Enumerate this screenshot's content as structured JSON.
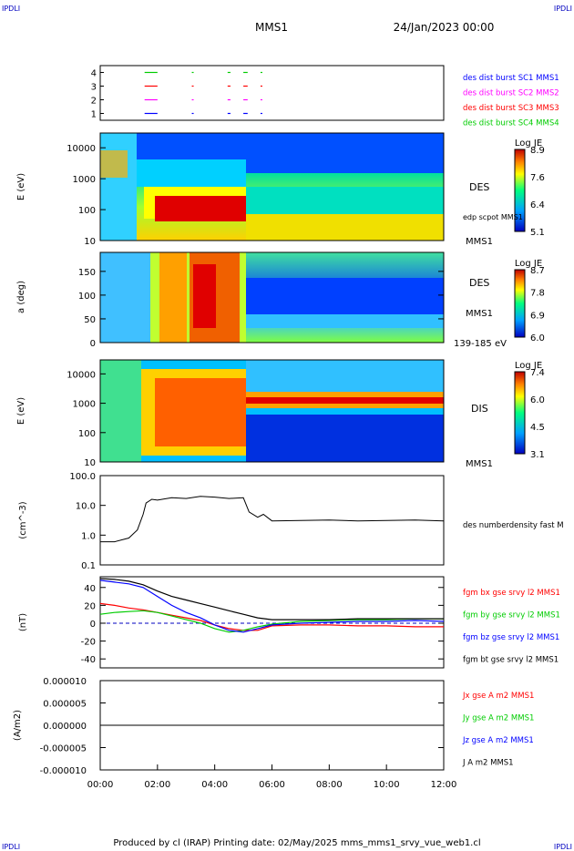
{
  "header": {
    "left_tag": "IPDLI",
    "right_tag": "IPDLI",
    "spacecraft": "MMS1",
    "date": "24/Jan/2023 00:00"
  },
  "footer": {
    "text": "Produced by cl (IRAP)   Printing date: 02/May/2025   mms_mms1_srvy_vue_web1.cl",
    "left_tag": "IPDLI",
    "right_tag": "IPDLI"
  },
  "colors": {
    "red": "#ff0000",
    "green": "#00cc00",
    "blue": "#0000ff",
    "magenta": "#ff00ff",
    "black": "#000000"
  },
  "chart_data": [
    {
      "type": "scatter",
      "panel": "burst-availability",
      "yticks": [
        "1",
        "2",
        "3",
        "4"
      ],
      "ylim": [
        0.5,
        4.5
      ],
      "legend": [
        {
          "name": "des dist burst SC1 MMS1",
          "color": "#0000ff"
        },
        {
          "name": "des dist burst SC2 MMS2",
          "color": "#ff00ff"
        },
        {
          "name": "des dist burst SC3 MMS3",
          "color": "#ff0000"
        },
        {
          "name": "des dist burst SC4 MMS4",
          "color": "#00cc00"
        }
      ],
      "segments": [
        {
          "level": 4,
          "start": 1.55,
          "end": 2.0,
          "color": "#00cc00"
        },
        {
          "level": 3,
          "start": 1.55,
          "end": 2.0,
          "color": "#ff0000"
        },
        {
          "level": 2,
          "start": 1.55,
          "end": 2.0,
          "color": "#ff00ff"
        },
        {
          "level": 1,
          "start": 1.55,
          "end": 2.0,
          "color": "#0000ff"
        },
        {
          "level": 4,
          "start": 3.2,
          "end": 3.25,
          "color": "#00cc00"
        },
        {
          "level": 3,
          "start": 3.2,
          "end": 3.25,
          "color": "#ff0000"
        },
        {
          "level": 2,
          "start": 3.2,
          "end": 3.25,
          "color": "#ff00ff"
        },
        {
          "level": 1,
          "start": 3.2,
          "end": 3.25,
          "color": "#0000ff"
        },
        {
          "level": 4,
          "start": 4.45,
          "end": 4.55,
          "color": "#00cc00"
        },
        {
          "level": 3,
          "start": 4.45,
          "end": 4.55,
          "color": "#ff0000"
        },
        {
          "level": 2,
          "start": 4.45,
          "end": 4.55,
          "color": "#ff00ff"
        },
        {
          "level": 1,
          "start": 4.45,
          "end": 4.55,
          "color": "#0000ff"
        },
        {
          "level": 4,
          "start": 5.0,
          "end": 5.15,
          "color": "#00cc00"
        },
        {
          "level": 3,
          "start": 5.0,
          "end": 5.15,
          "color": "#ff0000"
        },
        {
          "level": 2,
          "start": 5.0,
          "end": 5.15,
          "color": "#ff00ff"
        },
        {
          "level": 1,
          "start": 5.0,
          "end": 5.15,
          "color": "#0000ff"
        },
        {
          "level": 4,
          "start": 5.6,
          "end": 5.65,
          "color": "#00cc00"
        },
        {
          "level": 3,
          "start": 5.6,
          "end": 5.65,
          "color": "#ff0000"
        },
        {
          "level": 2,
          "start": 5.6,
          "end": 5.65,
          "color": "#ff00ff"
        },
        {
          "level": 1,
          "start": 5.6,
          "end": 5.65,
          "color": "#0000ff"
        }
      ]
    },
    {
      "type": "heatmap",
      "panel": "des-energy",
      "ylabel": "E (eV)",
      "yscale": "log",
      "ylim": [
        10,
        30000
      ],
      "yticks": [
        "10",
        "100",
        "1000",
        "10000"
      ],
      "right_labels": [
        "DES",
        "edp scpot MMS1",
        "MMS1"
      ],
      "colorbar": {
        "title": "Log JE",
        "ticks": [
          "8.9",
          "7.6",
          "6.4",
          "5.1"
        ],
        "min": 5.1,
        "max": 8.9
      },
      "description_bands": [
        {
          "t0": 0.0,
          "t1": 1.3,
          "e_peak": 900,
          "level": 7.0
        },
        {
          "t0": 1.5,
          "t1": 5.1,
          "e_peak": 150,
          "level": 8.5
        },
        {
          "t0": 5.1,
          "t1": 12.0,
          "e_peak": 30,
          "level": 7.2
        }
      ]
    },
    {
      "type": "heatmap",
      "panel": "des-pitch-angle",
      "ylabel": "a (deg)",
      "ylim": [
        0,
        180
      ],
      "yticks": [
        "0",
        "50",
        "100",
        "150"
      ],
      "right_labels": [
        "DES",
        "MMS1",
        "139-185 eV"
      ],
      "colorbar": {
        "title": "Log JE",
        "ticks": [
          "8.7",
          "7.8",
          "6.9",
          "6.0"
        ],
        "min": 6.0,
        "max": 8.7
      }
    },
    {
      "type": "heatmap",
      "panel": "dis-energy",
      "ylabel": "E (eV)",
      "yscale": "log",
      "ylim": [
        10,
        30000
      ],
      "yticks": [
        "10",
        "100",
        "1000",
        "10000"
      ],
      "right_labels": [
        "DIS",
        "MMS1"
      ],
      "colorbar": {
        "title": "Log JE",
        "ticks": [
          "7.4",
          "6.0",
          "4.5",
          "3.1"
        ],
        "min": 3.1,
        "max": 7.4
      }
    },
    {
      "type": "line",
      "panel": "density",
      "ylabel": "(cm^-3)",
      "yscale": "log",
      "ylim": [
        0.1,
        100
      ],
      "yticks": [
        "0.1",
        "1.0",
        "10.0",
        "100.0"
      ],
      "legend": [
        {
          "name": "des numberdensity fast M",
          "color": "#000000"
        }
      ],
      "x": [
        0.0,
        0.5,
        1.0,
        1.3,
        1.5,
        1.6,
        1.8,
        2.0,
        2.5,
        3.0,
        3.5,
        4.0,
        4.5,
        5.0,
        5.2,
        5.5,
        5.7,
        6.0,
        7.0,
        8.0,
        9.0,
        10.0,
        11.0,
        12.0
      ],
      "values": [
        0.6,
        0.6,
        0.8,
        1.5,
        5,
        12,
        16,
        15,
        18,
        17,
        20,
        19,
        17,
        18,
        6,
        4,
        5,
        3,
        3.1,
        3.2,
        3,
        3.1,
        3.2,
        3.0
      ]
    },
    {
      "type": "line",
      "panel": "magnetic-field",
      "ylabel": "(nT)",
      "ylim": [
        -50,
        52
      ],
      "yticks": [
        "-40",
        "-20",
        "0",
        "20",
        "40"
      ],
      "x": [
        0.0,
        0.5,
        1.0,
        1.5,
        2.0,
        2.5,
        3.0,
        3.5,
        4.0,
        4.5,
        5.0,
        5.5,
        6.0,
        7.0,
        8.0,
        9.0,
        10.0,
        11.0,
        12.0
      ],
      "series": [
        {
          "name": "fgm bx gse srvy l2 MMS1",
          "color": "#ff0000",
          "values": [
            22,
            20,
            17,
            15,
            12,
            9,
            6,
            3,
            -2,
            -6,
            -8,
            -8,
            -3,
            -2,
            -2,
            -3,
            -3,
            -4,
            -4
          ]
        },
        {
          "name": "fgm by gse srvy l2 MMS1",
          "color": "#00cc00",
          "values": [
            10,
            12,
            13,
            14,
            12,
            8,
            4,
            0,
            -6,
            -10,
            -8,
            -4,
            -1,
            2,
            3,
            4,
            4,
            5,
            5
          ]
        },
        {
          "name": "fgm bz gse srvy l2 MMS1",
          "color": "#0000ff",
          "values": [
            48,
            46,
            44,
            40,
            30,
            20,
            12,
            6,
            -2,
            -8,
            -10,
            -6,
            -2,
            0,
            1,
            2,
            2,
            3,
            2
          ]
        },
        {
          "name": "fgm bt gse srvy l2 MMS1",
          "color": "#000000",
          "values": [
            50,
            49,
            47,
            43,
            36,
            30,
            26,
            22,
            18,
            14,
            10,
            6,
            4,
            4,
            4,
            5,
            5,
            5,
            5
          ]
        }
      ]
    },
    {
      "type": "line",
      "panel": "current-density",
      "ylabel": "(A/m2)",
      "ylim": [
        -1e-05,
        1e-05
      ],
      "yticks": [
        "-0.000010",
        "-0.000005",
        "0.000000",
        "0.000005",
        "0.000010"
      ],
      "x": [
        0.0,
        1.0,
        2.0,
        3.0,
        4.0,
        5.0,
        6.0,
        7.0,
        8.0,
        9.0,
        10.0,
        11.0,
        12.0
      ],
      "series": [
        {
          "name": "Jx gse A m2 MMS1",
          "color": "#ff0000",
          "values": [
            0,
            0,
            0,
            0,
            0,
            0,
            0,
            0,
            0,
            0,
            0,
            0,
            0
          ]
        },
        {
          "name": "Jy gse A m2 MMS1",
          "color": "#00cc00",
          "values": [
            0,
            0,
            0,
            0,
            0,
            0,
            0,
            0,
            0,
            0,
            0,
            0,
            0
          ]
        },
        {
          "name": "Jz gse A m2 MMS1",
          "color": "#0000ff",
          "values": [
            0,
            0,
            0,
            0,
            0,
            0,
            0,
            0,
            0,
            0,
            0,
            0,
            0
          ]
        },
        {
          "name": "J A m2 MMS1",
          "color": "#000000",
          "values": [
            0,
            0,
            0,
            0,
            0,
            0,
            0,
            0,
            0,
            0,
            0,
            0,
            0
          ]
        }
      ]
    }
  ],
  "time_axis": {
    "ticks": [
      "00:00",
      "02:00",
      "04:00",
      "06:00",
      "08:00",
      "10:00",
      "12:00"
    ],
    "range_hours": [
      0,
      12
    ]
  }
}
